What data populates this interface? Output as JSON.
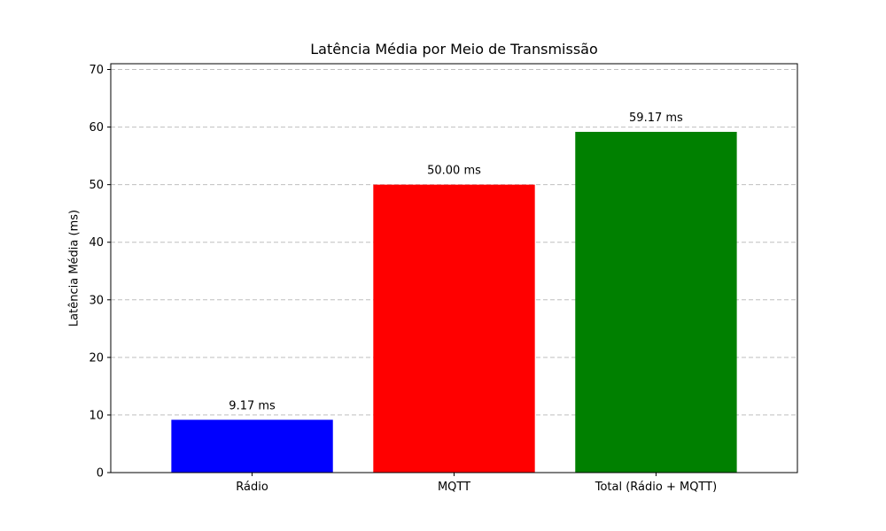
{
  "chart_data": {
    "type": "bar",
    "title": "Latência Média por Meio de Transmissão",
    "xlabel": "",
    "ylabel": "Latência Média (ms)",
    "categories": [
      "Rádio",
      "MQTT",
      "Total (Rádio + MQTT)"
    ],
    "values": [
      9.17,
      50.0,
      59.17
    ],
    "value_labels": [
      "9.17 ms",
      "50.00 ms",
      "59.17 ms"
    ],
    "colors": [
      "#0000ff",
      "#ff0000",
      "#008000"
    ],
    "ylim": [
      0,
      71
    ],
    "yticks": [
      0,
      10,
      20,
      30,
      40,
      50,
      60,
      70
    ],
    "grid": "y dashed"
  }
}
